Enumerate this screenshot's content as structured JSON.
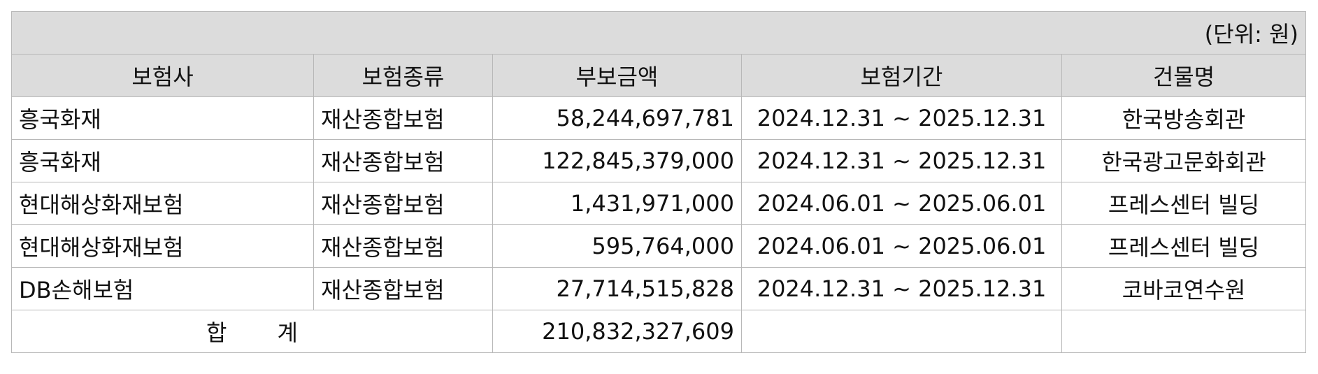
{
  "unit_note": "(단위: 원)",
  "columns": [
    "보험사",
    "보험종류",
    "부보금액",
    "보험기간",
    "건물명"
  ],
  "rows": [
    {
      "insurer": "흥국화재",
      "type": "재산종합보험",
      "amount": "58,244,697,781",
      "period": "2024.12.31 ~ 2025.12.31",
      "building": "한국방송회관"
    },
    {
      "insurer": "흥국화재",
      "type": "재산종합보험",
      "amount": "122,845,379,000",
      "period": "2024.12.31 ~ 2025.12.31",
      "building": "한국광고문화회관"
    },
    {
      "insurer": "현대해상화재보험",
      "type": "재산종합보험",
      "amount": "1,431,971,000",
      "period": "2024.06.01 ~ 2025.06.01",
      "building": "프레스센터 빌딩"
    },
    {
      "insurer": "현대해상화재보험",
      "type": "재산종합보험",
      "amount": "595,764,000",
      "period": "2024.06.01 ~ 2025.06.01",
      "building": "프레스센터 빌딩"
    },
    {
      "insurer": "DB손해보험",
      "type": "재산종합보험",
      "amount": "27,714,515,828",
      "period": "2024.12.31 ~ 2025.12.31",
      "building": "코바코연수원"
    }
  ],
  "total": {
    "label_part1": "합",
    "label_part2": "계",
    "amount": "210,832,327,609"
  }
}
